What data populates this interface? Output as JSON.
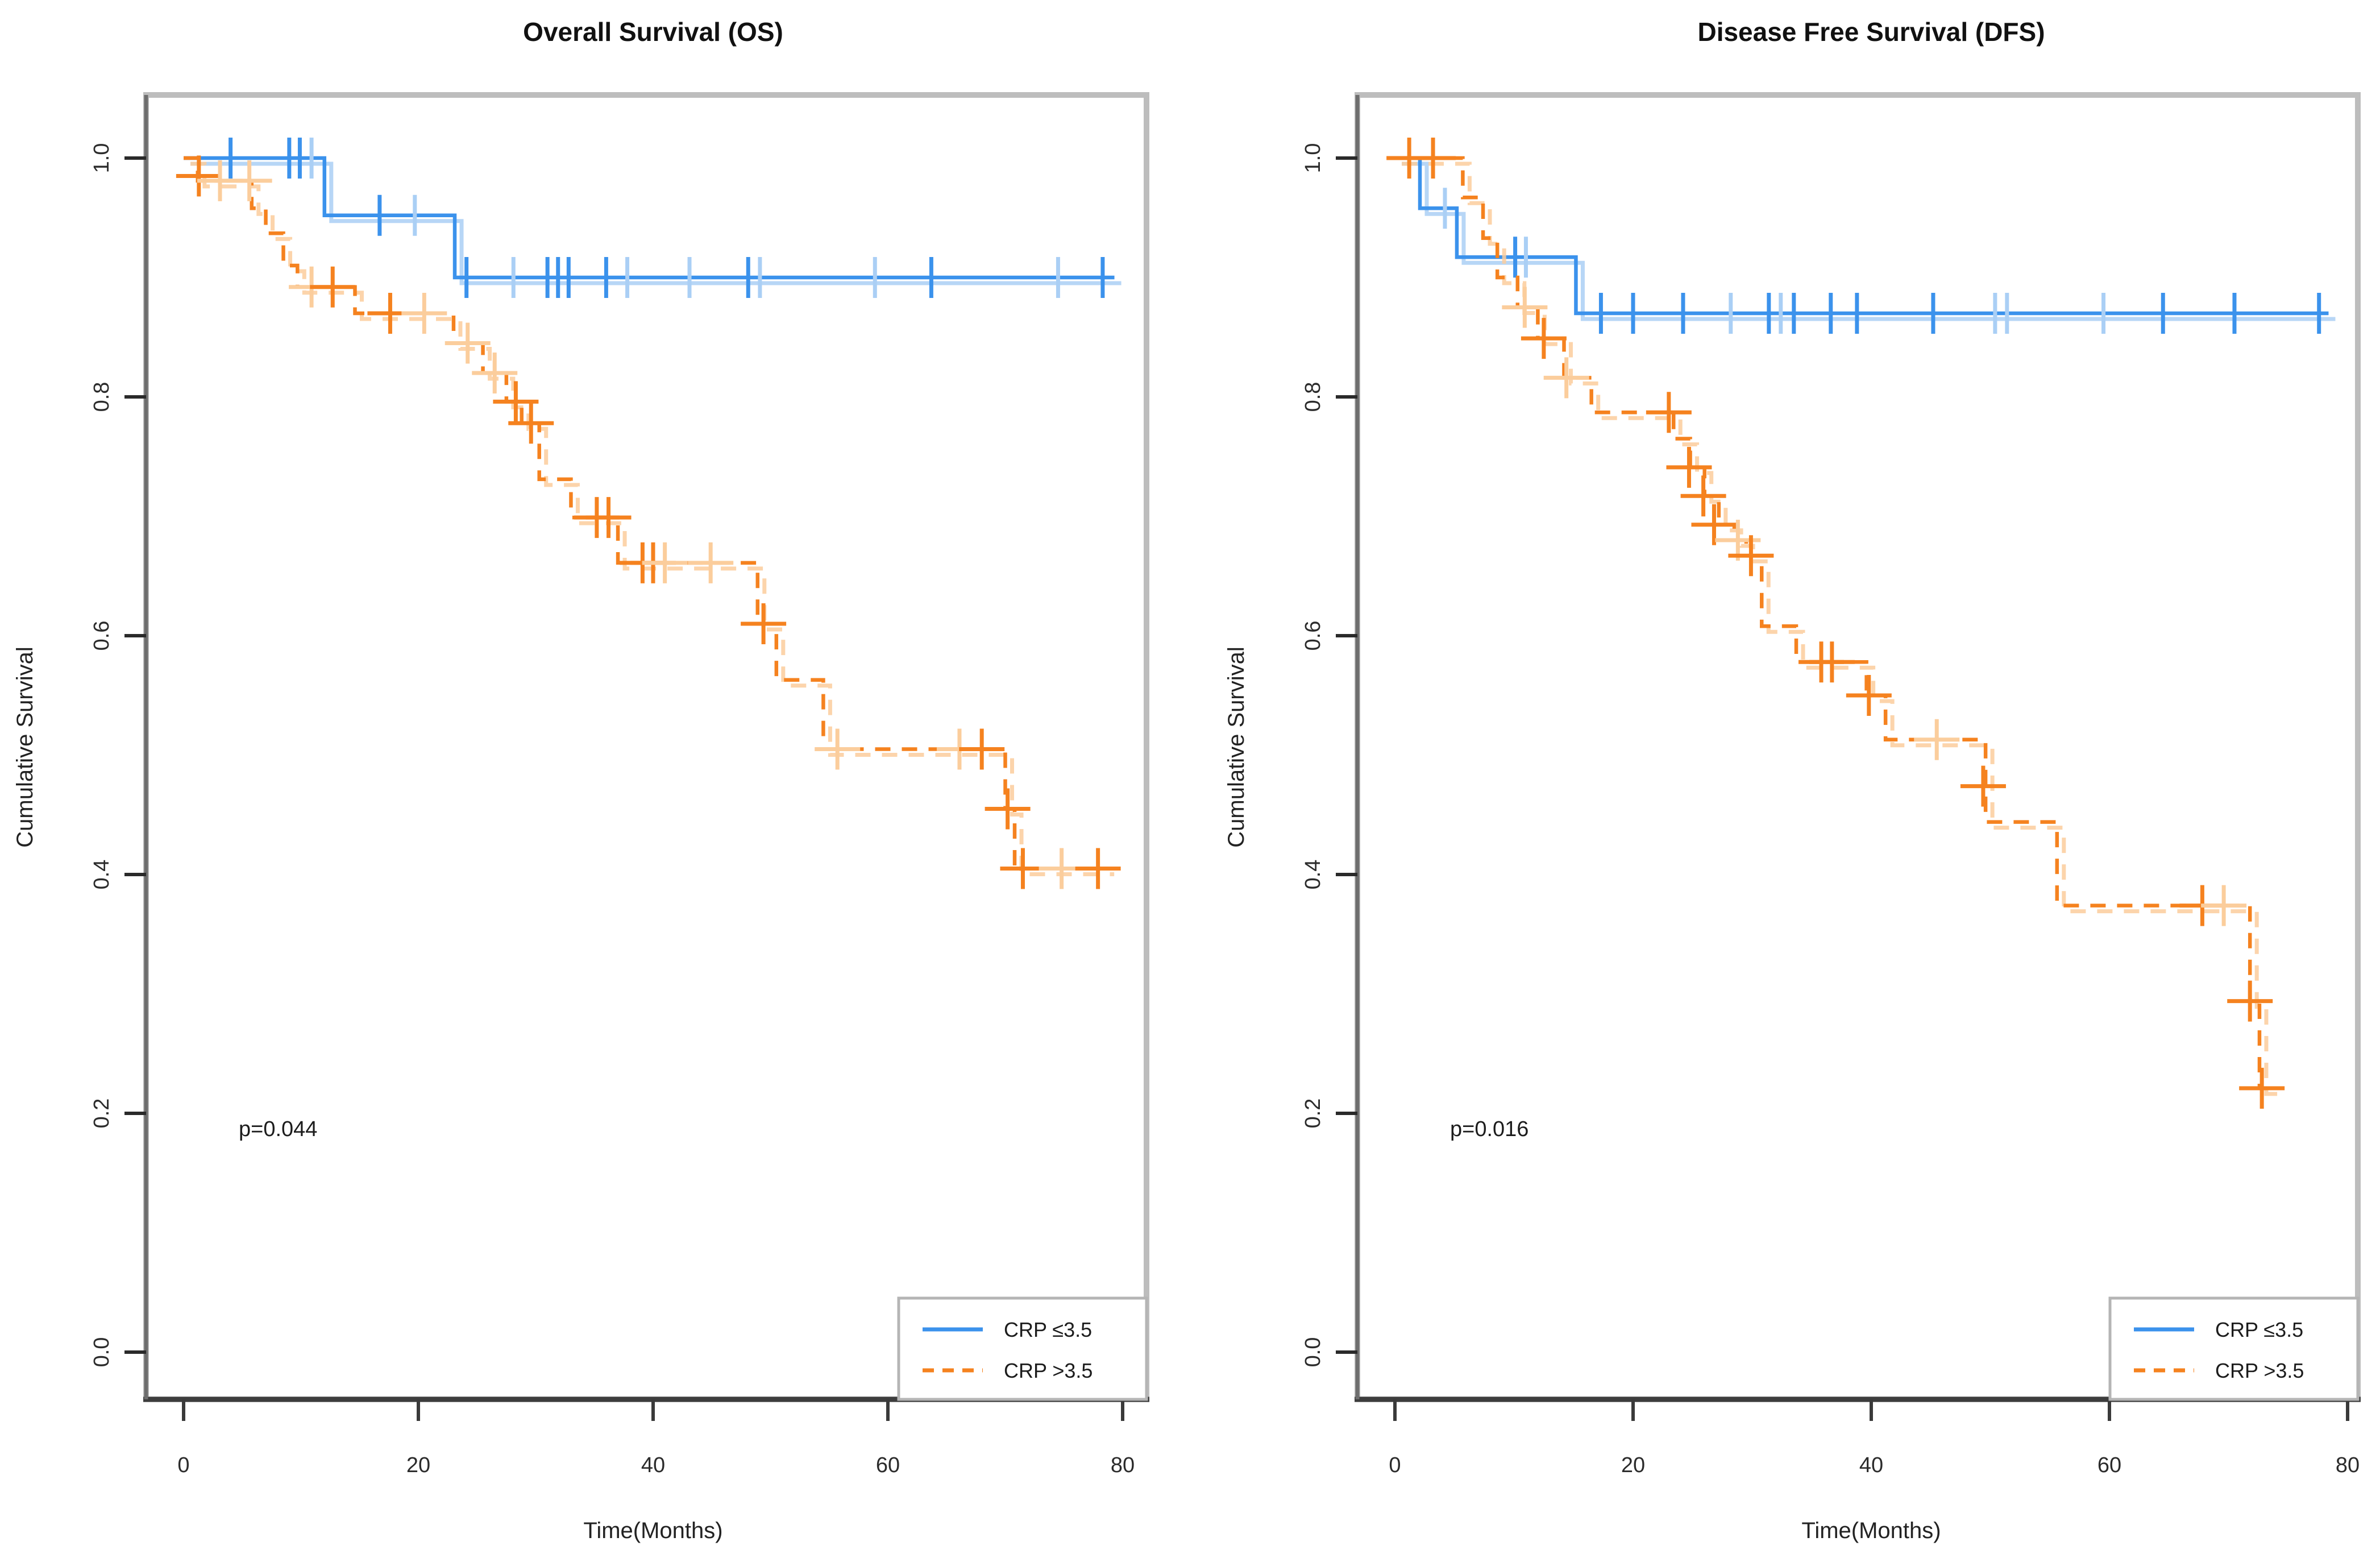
{
  "figure": {
    "background": "#ffffff",
    "frame_color": "#bdbdbd",
    "axis_color": "#3d3d3d"
  },
  "chart_data": [
    {
      "type": "line",
      "subtype": "kaplan-meier-step",
      "title": "Overall Survival (OS)",
      "xlabel": "Time(Months)",
      "ylabel": "Cumulative Survival",
      "pvalue": "p=0.044",
      "xlim": [
        0,
        80
      ],
      "ylim": [
        0.0,
        1.0
      ],
      "xticks": [
        "0",
        "20",
        "40",
        "60",
        "80"
      ],
      "yticks": [
        "0.0",
        "0.2",
        "0.4",
        "0.6",
        "0.8",
        "1.0"
      ],
      "grid": "off",
      "legend_position": "bottom-right",
      "legend": [
        {
          "label": "CRP ≤3.5",
          "color": "#3b92ec",
          "dash": false
        },
        {
          "label": "CRP >3.5",
          "color": "#f5821f",
          "dash": true
        }
      ],
      "series": [
        {
          "name": "CRP ≤3.5",
          "color": "#3b92ec",
          "light_color": "#aacff5",
          "dash": false,
          "end": 79.3,
          "steps": [
            [
              0,
              1.0
            ],
            [
              12.0,
              0.952
            ],
            [
              23.1,
              0.9
            ]
          ],
          "censors": [
            [
              4,
              1,
              0
            ],
            [
              9,
              1,
              0
            ],
            [
              9.9,
              1,
              0
            ],
            [
              10.9,
              1,
              1
            ],
            [
              16.7,
              0.952,
              0
            ],
            [
              19.7,
              0.952,
              1
            ],
            [
              24.1,
              0.9,
              0
            ],
            [
              28.1,
              0.9,
              1
            ],
            [
              31.0,
              0.9,
              0
            ],
            [
              31.9,
              0.9,
              0
            ],
            [
              32.8,
              0.9,
              0
            ],
            [
              36.0,
              0.9,
              0
            ],
            [
              37.8,
              0.9,
              1
            ],
            [
              43.1,
              0.9,
              1
            ],
            [
              48.1,
              0.9,
              0
            ],
            [
              49.1,
              0.9,
              1
            ],
            [
              58.9,
              0.9,
              1
            ],
            [
              63.7,
              0.9,
              0
            ],
            [
              74.5,
              0.9,
              1
            ],
            [
              78.3,
              0.9,
              0
            ]
          ]
        },
        {
          "name": "CRP >3.5",
          "color": "#f5821f",
          "light_color": "#fbcd9c",
          "dash": true,
          "end": 78.7,
          "steps": [
            [
              0,
              1.0
            ],
            [
              1.2,
              0.981
            ],
            [
              5.8,
              0.958
            ],
            [
              7.0,
              0.937
            ],
            [
              8.5,
              0.91
            ],
            [
              9.7,
              0.892
            ],
            [
              14.6,
              0.87
            ],
            [
              23.0,
              0.845
            ],
            [
              25.5,
              0.82
            ],
            [
              27.5,
              0.796
            ],
            [
              28.8,
              0.778
            ],
            [
              30.3,
              0.731
            ],
            [
              33.0,
              0.699
            ],
            [
              37.0,
              0.661
            ],
            [
              48.9,
              0.61
            ],
            [
              50.5,
              0.563
            ],
            [
              54.5,
              0.505
            ],
            [
              70.0,
              0.455
            ],
            [
              70.8,
              0.405
            ]
          ],
          "censors": [
            [
              1.3,
              0.985,
              0
            ],
            [
              3.1,
              0.981,
              1
            ],
            [
              5.6,
              0.981,
              1
            ],
            [
              10.9,
              0.892,
              1
            ],
            [
              12.7,
              0.892,
              0
            ],
            [
              17.6,
              0.87,
              0
            ],
            [
              20.5,
              0.87,
              1
            ],
            [
              24.2,
              0.845,
              1
            ],
            [
              26.5,
              0.82,
              1
            ],
            [
              28.3,
              0.796,
              0
            ],
            [
              29.6,
              0.778,
              0
            ],
            [
              35.2,
              0.699,
              0
            ],
            [
              36.2,
              0.699,
              0
            ],
            [
              39.1,
              0.661,
              0
            ],
            [
              40.0,
              0.661,
              0
            ],
            [
              41.0,
              0.661,
              1
            ],
            [
              44.9,
              0.661,
              1
            ],
            [
              49.4,
              0.61,
              0
            ],
            [
              55.7,
              0.505,
              1
            ],
            [
              66.1,
              0.505,
              1
            ],
            [
              68.0,
              0.505,
              0
            ],
            [
              70.2,
              0.455,
              0
            ],
            [
              71.5,
              0.405,
              0
            ],
            [
              74.8,
              0.405,
              1
            ],
            [
              77.9,
              0.405,
              0
            ]
          ]
        }
      ]
    },
    {
      "type": "line",
      "subtype": "kaplan-meier-step",
      "title": "Disease Free Survival (DFS)",
      "xlabel": "Time(Months)",
      "ylabel": "Cumulative Survival",
      "pvalue": "p=0.016",
      "xlim": [
        0,
        80
      ],
      "ylim": [
        0.0,
        1.0
      ],
      "xticks": [
        "0",
        "20",
        "40",
        "60",
        "80"
      ],
      "yticks": [
        "0.0",
        "0.2",
        "0.4",
        "0.6",
        "0.8",
        "1.0"
      ],
      "grid": "off",
      "legend_position": "bottom-right",
      "legend": [
        {
          "label": "CRP ≤3.5",
          "color": "#3b92ec",
          "dash": false
        },
        {
          "label": "CRP >3.5",
          "color": "#f5821f",
          "dash": true
        }
      ],
      "series": [
        {
          "name": "CRP ≤3.5",
          "color": "#3b92ec",
          "light_color": "#aacff5",
          "dash": false,
          "end": 78.4,
          "steps": [
            [
              0,
              1.0
            ],
            [
              2.1,
              0.958
            ],
            [
              5.2,
              0.917
            ],
            [
              15.2,
              0.87
            ]
          ],
          "censors": [
            [
              4.2,
              0.958,
              1
            ],
            [
              10.1,
              0.917,
              0
            ],
            [
              11.0,
              0.917,
              1
            ],
            [
              17.3,
              0.87,
              0
            ],
            [
              20.0,
              0.87,
              0
            ],
            [
              24.2,
              0.87,
              0
            ],
            [
              28.2,
              0.87,
              1
            ],
            [
              31.4,
              0.87,
              0
            ],
            [
              32.4,
              0.87,
              1
            ],
            [
              33.5,
              0.87,
              0
            ],
            [
              36.6,
              0.87,
              0
            ],
            [
              38.8,
              0.87,
              0
            ],
            [
              45.2,
              0.87,
              0
            ],
            [
              50.4,
              0.87,
              1
            ],
            [
              51.4,
              0.87,
              1
            ],
            [
              59.5,
              0.87,
              1
            ],
            [
              64.5,
              0.87,
              0
            ],
            [
              70.5,
              0.87,
              0
            ],
            [
              77.6,
              0.87,
              0
            ]
          ]
        },
        {
          "name": "CRP >3.5",
          "color": "#f5821f",
          "light_color": "#fbcd9c",
          "dash": true,
          "end": 73.6,
          "steps": [
            [
              0,
              1.0
            ],
            [
              5.7,
              0.967
            ],
            [
              7.4,
              0.933
            ],
            [
              8.6,
              0.9
            ],
            [
              10.3,
              0.875
            ],
            [
              12.0,
              0.849
            ],
            [
              14.2,
              0.816
            ],
            [
              16.5,
              0.787
            ],
            [
              23.4,
              0.765
            ],
            [
              24.8,
              0.741
            ],
            [
              26.0,
              0.717
            ],
            [
              27.2,
              0.693
            ],
            [
              28.5,
              0.68
            ],
            [
              29.5,
              0.667
            ],
            [
              30.8,
              0.608
            ],
            [
              33.7,
              0.578
            ],
            [
              39.6,
              0.55
            ],
            [
              41.2,
              0.513
            ],
            [
              49.6,
              0.444
            ],
            [
              55.6,
              0.374
            ],
            [
              71.8,
              0.294
            ],
            [
              72.6,
              0.221
            ]
          ],
          "censors": [
            [
              1.2,
              1,
              0
            ],
            [
              3.2,
              1,
              0
            ],
            [
              10.9,
              0.875,
              1
            ],
            [
              12.5,
              0.849,
              0
            ],
            [
              14.4,
              0.816,
              1
            ],
            [
              23.0,
              0.787,
              0
            ],
            [
              24.7,
              0.741,
              0
            ],
            [
              25.9,
              0.717,
              0
            ],
            [
              26.8,
              0.693,
              0
            ],
            [
              28.8,
              0.68,
              1
            ],
            [
              29.9,
              0.667,
              0
            ],
            [
              35.8,
              0.578,
              0
            ],
            [
              36.7,
              0.578,
              0
            ],
            [
              39.8,
              0.55,
              0
            ],
            [
              45.5,
              0.513,
              1
            ],
            [
              49.4,
              0.474,
              0
            ],
            [
              67.8,
              0.374,
              0
            ],
            [
              69.6,
              0.374,
              1
            ],
            [
              71.8,
              0.294,
              0
            ],
            [
              72.8,
              0.221,
              0
            ]
          ]
        }
      ]
    }
  ]
}
